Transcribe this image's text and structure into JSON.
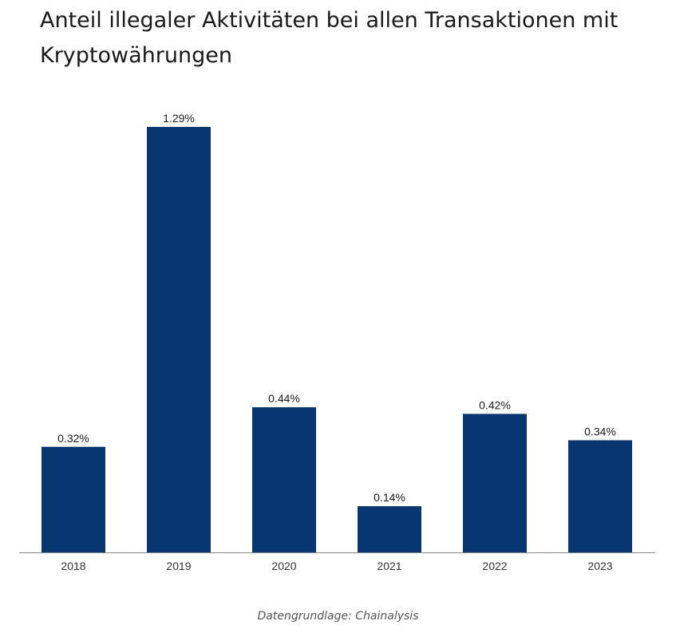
{
  "chart_data": {
    "type": "bar",
    "title": "Anteil illegaler Aktivitäten bei allen Transaktionen mit Kryptowährungen",
    "categories": [
      "2018",
      "2019",
      "2020",
      "2021",
      "2022",
      "2023"
    ],
    "values": [
      0.32,
      1.29,
      0.44,
      0.14,
      0.42,
      0.34
    ],
    "value_labels": [
      "0.32%",
      "1.29%",
      "0.44%",
      "0.14%",
      "0.42%",
      "0.34%"
    ],
    "xlabel": "",
    "ylabel": "",
    "ylim": [
      0,
      1.29
    ],
    "grid": false,
    "bar_color": "#083670",
    "axis_color": "#888888"
  },
  "source": "Datengrundlage: Chainalysis"
}
